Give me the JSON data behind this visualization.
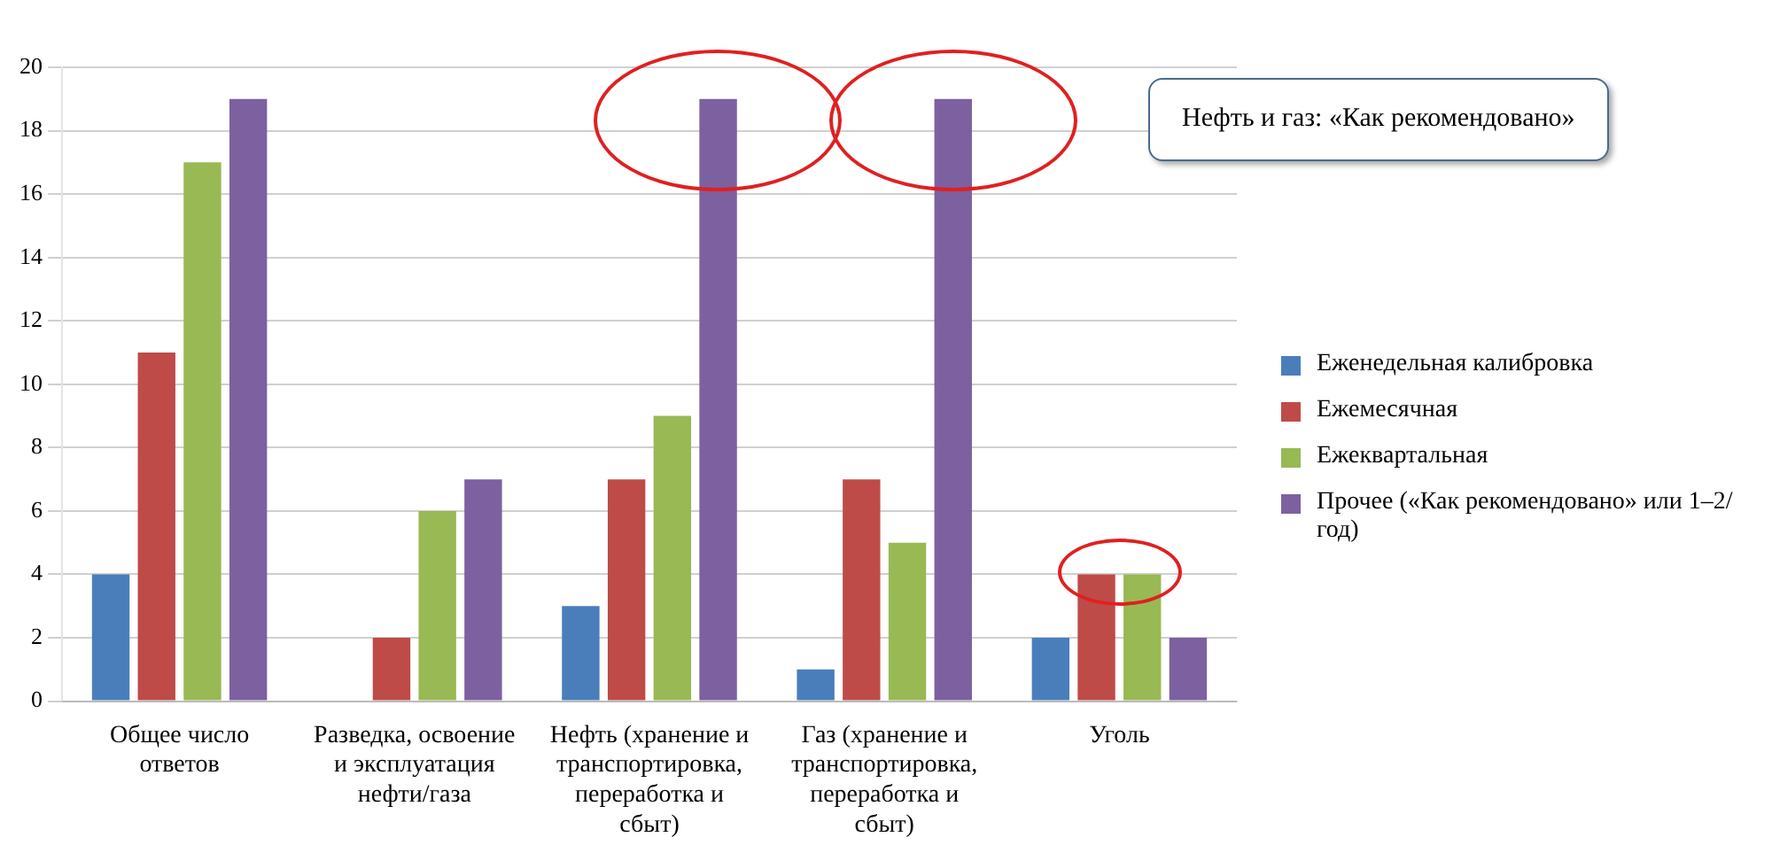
{
  "chart_data": {
    "type": "bar",
    "categories": [
      "Общее число ответов",
      "Разведка, освоение и эксплуатация нефти/газа",
      "Нефть (хранение и транспортировка, переработка и сбыт)",
      "Газ (хранение и транспортировка, переработка и сбыт)",
      "Уголь"
    ],
    "series": [
      {
        "name": "Еженедельная калибровка",
        "color": "#4a7ebb",
        "values": [
          4,
          0,
          3,
          1,
          2
        ]
      },
      {
        "name": "Ежемесячная",
        "color": "#be4b48",
        "values": [
          11,
          2,
          7,
          7,
          4
        ]
      },
      {
        "name": "Ежеквартальная",
        "color": "#98b954",
        "values": [
          17,
          6,
          9,
          5,
          4
        ]
      },
      {
        "name": "Прочее («Как рекомендовано» или 1–2/год)",
        "color": "#7d60a0",
        "values": [
          19,
          7,
          19,
          19,
          2
        ]
      }
    ],
    "ylim": [
      0,
      20
    ],
    "yticks": [
      0,
      2,
      4,
      6,
      8,
      10,
      12,
      14,
      16,
      18,
      20
    ],
    "grid": "y",
    "legend": "right",
    "annotations": [
      "Нефть и газ: «Как рекомендовано»"
    ]
  }
}
